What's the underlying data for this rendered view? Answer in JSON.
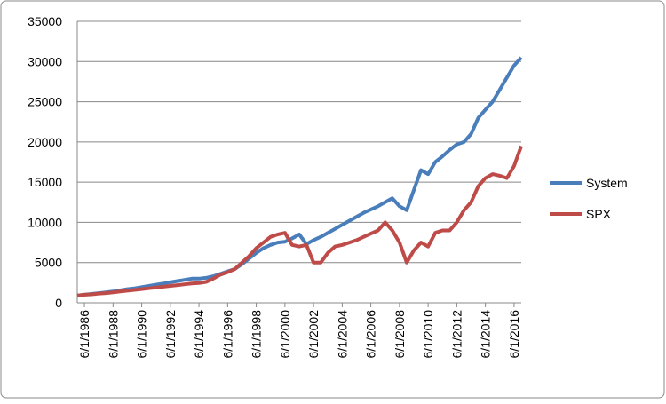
{
  "chart_data": {
    "type": "line",
    "x": [
      "12/1/1985",
      "6/1/1986",
      "12/1/1986",
      "6/1/1987",
      "12/1/1987",
      "6/1/1988",
      "12/1/1988",
      "6/1/1989",
      "12/1/1989",
      "6/1/1990",
      "12/1/1990",
      "6/1/1991",
      "12/1/1991",
      "6/1/1992",
      "12/1/1992",
      "6/1/1993",
      "12/1/1993",
      "6/1/1994",
      "12/1/1994",
      "6/1/1995",
      "12/1/1995",
      "6/1/1996",
      "12/1/1996",
      "6/1/1997",
      "12/1/1997",
      "6/1/1998",
      "12/1/1998",
      "6/1/1999",
      "12/1/1999",
      "6/1/2000",
      "12/1/2000",
      "6/1/2001",
      "12/1/2001",
      "6/1/2002",
      "12/1/2002",
      "6/1/2003",
      "12/1/2003",
      "6/1/2004",
      "12/1/2004",
      "6/1/2005",
      "12/1/2005",
      "6/1/2006",
      "12/1/2006",
      "6/1/2007",
      "12/1/2007",
      "6/1/2008",
      "12/1/2008",
      "6/1/2009",
      "12/1/2009",
      "6/1/2010",
      "12/1/2010",
      "6/1/2011",
      "12/1/2011",
      "6/1/2012",
      "12/1/2012",
      "6/1/2013",
      "12/1/2013",
      "6/1/2014",
      "12/1/2014",
      "6/1/2015",
      "12/1/2015",
      "6/1/2016",
      "12/1/2016"
    ],
    "series": [
      {
        "name": "System",
        "color": "#4a7ebb",
        "values": [
          900,
          1000,
          1100,
          1200,
          1300,
          1400,
          1550,
          1700,
          1800,
          1950,
          2100,
          2250,
          2400,
          2550,
          2700,
          2850,
          3000,
          3000,
          3100,
          3300,
          3600,
          3900,
          4200,
          4800,
          5500,
          6200,
          6800,
          7200,
          7500,
          7600,
          8000,
          8500,
          7300,
          7800,
          8200,
          8700,
          9200,
          9700,
          10200,
          10700,
          11200,
          11600,
          12000,
          12500,
          13000,
          12000,
          11500,
          14000,
          16500,
          16000,
          17500,
          18200,
          19000,
          19700,
          20000,
          21000,
          23000,
          24000,
          25000,
          26500,
          28000,
          29500,
          30500
        ]
      },
      {
        "name": "SPX",
        "color": "#be4b48",
        "values": [
          900,
          1000,
          1050,
          1150,
          1200,
          1300,
          1400,
          1500,
          1600,
          1700,
          1800,
          1900,
          2000,
          2100,
          2200,
          2300,
          2400,
          2450,
          2600,
          3000,
          3500,
          3800,
          4200,
          5000,
          5800,
          6800,
          7500,
          8200,
          8500,
          8700,
          7200,
          7000,
          7200,
          5000,
          5000,
          6200,
          7000,
          7200,
          7500,
          7800,
          8200,
          8600,
          9000,
          10000,
          9000,
          7500,
          5000,
          6500,
          7500,
          7000,
          8700,
          9000,
          9000,
          10000,
          11500,
          12500,
          14500,
          15500,
          16000,
          15800,
          15500,
          17000,
          19500
        ]
      }
    ],
    "xlim": [
      "12/1/1985",
      "12/1/2016"
    ],
    "xticks": [
      "6/1/1986",
      "6/1/1988",
      "6/1/1990",
      "6/1/1992",
      "6/1/1994",
      "6/1/1996",
      "6/1/1998",
      "6/1/2000",
      "6/1/2002",
      "6/1/2004",
      "6/1/2006",
      "6/1/2008",
      "6/1/2010",
      "6/1/2012",
      "6/1/2014",
      "6/1/2016"
    ],
    "ylim": [
      0,
      35000
    ],
    "yticks": [
      0,
      5000,
      10000,
      15000,
      20000,
      25000,
      30000,
      35000
    ],
    "grid": true,
    "legend": "right"
  }
}
